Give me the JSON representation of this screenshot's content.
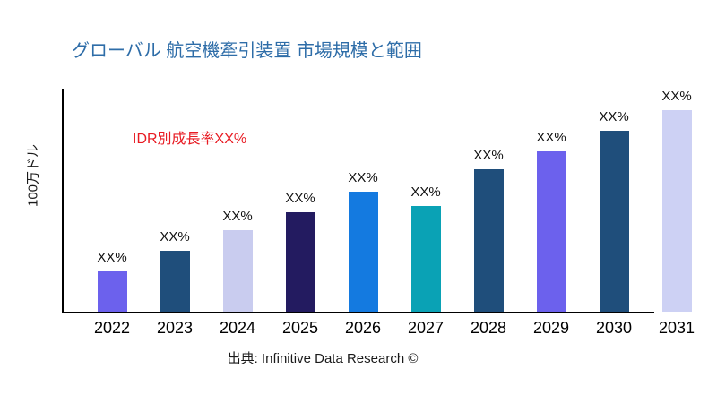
{
  "title": {
    "text": "グローバル 航空機牽引装置 市場規模と範囲",
    "color": "#2E6DA8"
  },
  "annotation": {
    "text": "IDR別成長率XX%",
    "color": "#E81B23"
  },
  "source_text": "出典: Infinitive Data Research ©",
  "chart_data": {
    "type": "bar",
    "title": "グローバル 航空機牽引装置 市場規模と範囲",
    "xlabel": "",
    "ylabel": "100万ドル",
    "categories": [
      "2022",
      "2023",
      "2024",
      "2025",
      "2026",
      "2027",
      "2028",
      "2029",
      "2030",
      "2031"
    ],
    "values_relative": [
      20,
      30,
      40,
      49,
      59,
      52,
      70,
      79,
      89,
      100
    ],
    "bar_labels": [
      "XX%",
      "XX%",
      "XX%",
      "XX%",
      "XX%",
      "XX%",
      "XX%",
      "XX%",
      "XX%",
      "XX%"
    ],
    "bar_colors": [
      "#6C61ED",
      "#1F4E7B",
      "#C9CCEF",
      "#231B60",
      "#147AE0",
      "#0AA2B5",
      "#1F4E7B",
      "#6C61ED",
      "#1F4E7B",
      "#CDD1F4"
    ],
    "ylim": [
      0,
      105
    ],
    "grid": false,
    "legend": "none",
    "annotation": "IDR別成長率XX%",
    "value_note": "all data labels shown as placeholder XX%; relative values estimated from bar heights"
  }
}
